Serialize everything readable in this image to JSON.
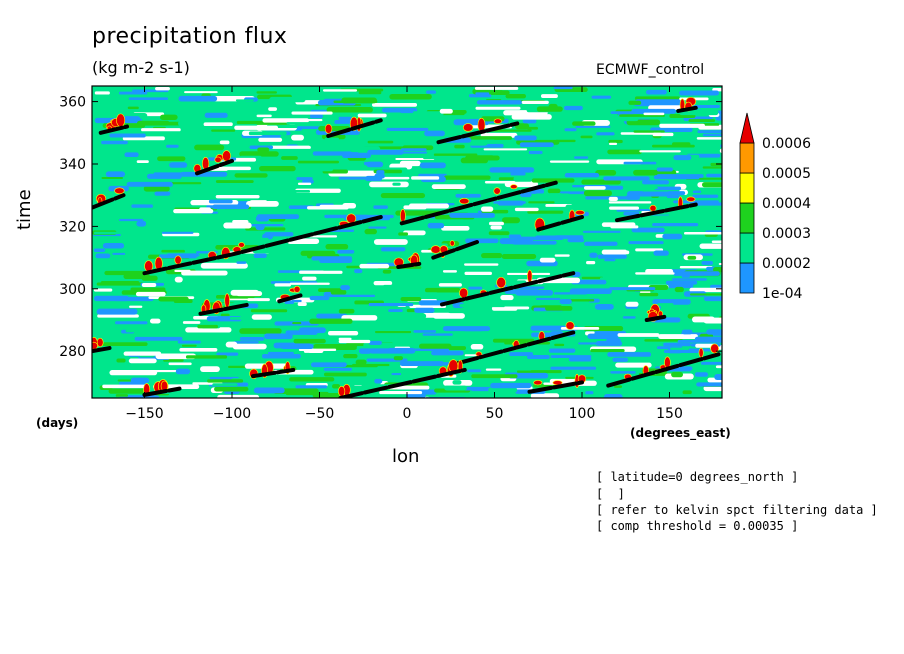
{
  "chart_data": {
    "type": "heatmap",
    "title": "precipitation flux",
    "units": "(kg m-2 s-1)",
    "dataset_label": "ECMWF_control",
    "xlabel": "lon",
    "ylabel": "time",
    "x_unit_label": "(degrees_east)",
    "y_unit_label": "(days)",
    "xlim": [
      -180,
      180
    ],
    "ylim": [
      265,
      365
    ],
    "x_ticks": [
      -150,
      -100,
      -50,
      0,
      50,
      100,
      150
    ],
    "x_tick_labels": [
      "−150",
      "−100",
      "−50",
      "0",
      "50",
      "100",
      "150"
    ],
    "y_ticks": [
      280,
      300,
      320,
      340,
      360
    ],
    "y_tick_labels": [
      "280",
      "300",
      "320",
      "340",
      "360"
    ],
    "colorbar": {
      "levels": [
        0.0001,
        0.0002,
        0.0003,
        0.0004,
        0.0005,
        0.0006
      ],
      "labels": [
        "1e-04",
        "0.0002",
        "0.0003",
        "0.0004",
        "0.0005",
        "0.0006"
      ],
      "colors": [
        "#ffffff",
        "#1e96ff",
        "#00e68c",
        "#1ed21e",
        "#ffff00",
        "#ff9900",
        "#e60000"
      ]
    },
    "overlay_lines": [
      {
        "x": [
          -175,
          -160
        ],
        "y": [
          350,
          352
        ]
      },
      {
        "x": [
          -120,
          -100
        ],
        "y": [
          337,
          341
        ]
      },
      {
        "x": [
          -45,
          -15
        ],
        "y": [
          349,
          354
        ]
      },
      {
        "x": [
          18,
          63
        ],
        "y": [
          347,
          353
        ]
      },
      {
        "x": [
          155,
          165
        ],
        "y": [
          357,
          358
        ]
      },
      {
        "x": [
          -180,
          -162
        ],
        "y": [
          326,
          330
        ]
      },
      {
        "x": [
          -150,
          -100,
          -15
        ],
        "y": [
          305,
          311,
          323
        ]
      },
      {
        "x": [
          -3,
          85
        ],
        "y": [
          321,
          334
        ]
      },
      {
        "x": [
          75,
          100
        ],
        "y": [
          319,
          323
        ]
      },
      {
        "x": [
          120,
          165
        ],
        "y": [
          322,
          327
        ]
      },
      {
        "x": [
          15,
          40
        ],
        "y": [
          310,
          315
        ]
      },
      {
        "x": [
          -5,
          7
        ],
        "y": [
          307,
          308
        ]
      },
      {
        "x": [
          -118,
          -90
        ],
        "y": [
          292,
          295
        ]
      },
      {
        "x": [
          -73,
          -60
        ],
        "y": [
          296,
          298
        ]
      },
      {
        "x": [
          20,
          95
        ],
        "y": [
          295,
          305
        ]
      },
      {
        "x": [
          137,
          147
        ],
        "y": [
          290,
          291
        ]
      },
      {
        "x": [
          28,
          95
        ],
        "y": [
          276,
          286
        ]
      },
      {
        "x": [
          -180,
          -170
        ],
        "y": [
          280,
          281
        ]
      },
      {
        "x": [
          -88,
          -65
        ],
        "y": [
          272,
          274
        ]
      },
      {
        "x": [
          -150,
          -130
        ],
        "y": [
          266,
          268
        ]
      },
      {
        "x": [
          -38,
          33
        ],
        "y": [
          265,
          274
        ]
      },
      {
        "x": [
          70,
          100
        ],
        "y": [
          267,
          270
        ]
      },
      {
        "x": [
          115,
          178
        ],
        "y": [
          269,
          279
        ]
      }
    ]
  },
  "notes": [
    "[ latitude=0 degrees_north ]",
    "[  ]",
    "[ refer to kelvin spct filtering data ]",
    "[ comp threshold = 0.00035 ]"
  ]
}
